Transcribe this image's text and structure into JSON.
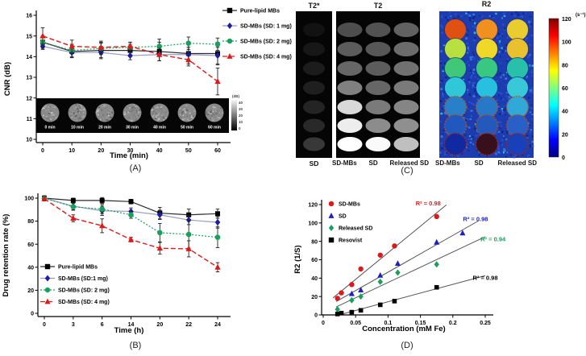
{
  "figure": {
    "captions": {
      "a": "(A)",
      "b": "(B)",
      "c": "(C)",
      "d": "(D)"
    }
  },
  "chart_data": [
    {
      "id": "cnr_vs_time",
      "type": "line",
      "xlabel": "Time (min)",
      "ylabel": "CNR (dB)",
      "x": [
        0,
        10,
        20,
        30,
        40,
        50,
        60
      ],
      "xtick_labels": [
        "0",
        "10",
        "20",
        "30",
        "40",
        "50",
        "60"
      ],
      "ylim": [
        10,
        16
      ],
      "yticks": [
        10,
        11,
        12,
        13,
        14,
        15,
        16
      ],
      "legend_position": "outside-right",
      "series": [
        {
          "name": "Pure-lipid MBs",
          "marker": "square",
          "color": "#000000",
          "line_color": "#2a2a2a",
          "dash": "solid",
          "values": [
            14.7,
            14.25,
            14.3,
            14.3,
            14.25,
            14.15,
            14.15
          ],
          "errors": [
            0.25,
            0.3,
            0.35,
            0.3,
            0.45,
            0.5,
            0.55
          ]
        },
        {
          "name": "SD-MBs (SD: 1 mg)",
          "marker": "diamond",
          "color": "#1c1ca8",
          "line_color": "#9a9ac8",
          "dash": "solid",
          "values": [
            14.5,
            14.2,
            14.2,
            14.05,
            14.1,
            14.1,
            14.05
          ],
          "errors": [
            0.15,
            0.25,
            0.3,
            0.2,
            0.3,
            0.35,
            0.4
          ]
        },
        {
          "name": "SD-MBs (SD: 2 mg)",
          "marker": "circle",
          "color": "#18a05c",
          "line_color": "#18a05c",
          "dash": "dotted",
          "values": [
            14.7,
            14.3,
            14.4,
            14.45,
            14.5,
            14.65,
            14.6
          ],
          "errors": [
            0.3,
            0.3,
            0.3,
            0.25,
            0.35,
            0.3,
            0.3
          ]
        },
        {
          "name": "SD-MBs (SD: 4 mg)",
          "marker": "triangle",
          "color": "#e01818",
          "line_color": "#e01818",
          "dash": "dashed",
          "values": [
            15.0,
            14.5,
            14.45,
            14.5,
            14.1,
            13.85,
            12.8
          ],
          "errors": [
            0.4,
            0.3,
            0.3,
            0.2,
            0.3,
            0.3,
            0.65
          ]
        }
      ],
      "inset": {
        "labels": [
          "0 min",
          "10 min",
          "20 min",
          "30 min",
          "40 min",
          "50 min",
          "60 min"
        ],
        "colorbar_label": "(dB)",
        "colorbar_ticks": [
          "40",
          "30",
          "20",
          "10",
          "0"
        ]
      }
    },
    {
      "id": "drug_retention_vs_time",
      "type": "line",
      "xlabel": "Time (h)",
      "ylabel": "Drug retention rate (%)",
      "x_categories": [
        "0",
        "3",
        "6",
        "14",
        "20",
        "22",
        "24"
      ],
      "ylim": [
        0,
        100
      ],
      "yticks": [
        0,
        20,
        40,
        60,
        80,
        100
      ],
      "legend_position": "inside-bottom-left",
      "series": [
        {
          "name": "Pure-lipid MBs",
          "marker": "square",
          "color": "#000000",
          "line_color": "#2a2a2a",
          "dash": "solid",
          "values": [
            100,
            98,
            98,
            97,
            87,
            85.5,
            86.5
          ],
          "errors": [
            2,
            2,
            2.5,
            2,
            5,
            5,
            4
          ]
        },
        {
          "name": "SD-MBs (SD:1 mg)",
          "marker": "diamond",
          "color": "#1c1ca8",
          "line_color": "#9a9ac8",
          "dash": "solid",
          "values": [
            100,
            93,
            89,
            88.5,
            85.5,
            81,
            79
          ],
          "errors": [
            2,
            3,
            4,
            3,
            4,
            4,
            5
          ]
        },
        {
          "name": "SD-MBs (SD: 2 mg)",
          "marker": "circle",
          "color": "#18a05c",
          "line_color": "#18a05c",
          "dash": "dotted",
          "values": [
            100,
            92.5,
            90.5,
            85.5,
            70,
            68.5,
            66
          ],
          "errors": [
            2,
            3,
            4,
            3,
            8,
            12,
            9
          ]
        },
        {
          "name": "SD-MBs (SD: 4 mg)",
          "marker": "triangle",
          "color": "#e01818",
          "line_color": "#e01818",
          "dash": "dashed",
          "values": [
            99.5,
            82.5,
            76,
            64,
            56.5,
            56,
            40
          ],
          "errors": [
            2,
            3,
            6,
            2,
            5,
            7,
            4
          ]
        }
      ]
    },
    {
      "id": "r2_vs_concentration",
      "type": "scatter",
      "xlabel": "Concentration (mM Fe)",
      "ylabel": "R2 (1/S)",
      "xlim": [
        0,
        0.25
      ],
      "xticks": [
        0,
        0.05,
        0.1,
        0.15,
        0.2,
        0.25
      ],
      "xtick_labels": [
        "0",
        "0.05",
        "0.1",
        "0.15",
        "0.2",
        "0.25"
      ],
      "ylim": [
        0,
        120
      ],
      "yticks": [
        0,
        20,
        40,
        60,
        80,
        100,
        120
      ],
      "legend_position": "inside-top-left",
      "fit_line_color": "#555555",
      "series": [
        {
          "name": "SD-MBs",
          "marker": "circle",
          "color": "#e01818",
          "points": [
            [
              0.022,
              18
            ],
            [
              0.028,
              24
            ],
            [
              0.044,
              33
            ],
            [
              0.058,
              50
            ],
            [
              0.088,
              65
            ],
            [
              0.11,
              75
            ],
            [
              0.175,
              107
            ]
          ],
          "fit_range": [
            0.015,
            0.19
          ],
          "r2_label": "R² = 0.98",
          "r2_pos": [
            0.162,
            119
          ]
        },
        {
          "name": "SD",
          "marker": "triangle",
          "color": "#2020c0",
          "points": [
            [
              0.044,
              23
            ],
            [
              0.058,
              27
            ],
            [
              0.088,
              43
            ],
            [
              0.115,
              56
            ],
            [
              0.175,
              79
            ],
            [
              0.215,
              89
            ]
          ],
          "fit_range": [
            0.02,
            0.24
          ],
          "r2_label": "R² = 0.98",
          "r2_pos": [
            0.235,
            102
          ]
        },
        {
          "name": "Released SD",
          "marker": "diamond",
          "color": "#18a05c",
          "points": [
            [
              0.022,
              6
            ],
            [
              0.044,
              16
            ],
            [
              0.058,
              20
            ],
            [
              0.088,
              36
            ],
            [
              0.115,
              46
            ],
            [
              0.175,
              55
            ]
          ],
          "fit_range": [
            0.02,
            0.25
          ],
          "r2_label": "R² = 0.94",
          "r2_pos": [
            0.262,
            80
          ]
        },
        {
          "name": "Resovist",
          "marker": "square",
          "color": "#000000",
          "points": [
            [
              0.022,
              1
            ],
            [
              0.028,
              2
            ],
            [
              0.044,
              3
            ],
            [
              0.058,
              5
            ],
            [
              0.088,
              11
            ],
            [
              0.11,
              15
            ],
            [
              0.175,
              30
            ]
          ],
          "fit_range": [
            0.02,
            0.25
          ],
          "r2_label": "R² = 0.98",
          "r2_pos": [
            0.25,
            38
          ]
        }
      ]
    }
  ],
  "panel_c": {
    "t2star": {
      "title": "T2*",
      "bottom_label": "SD",
      "brightness": [
        0.07,
        0.09,
        0.11,
        0.12,
        0.14,
        0.16,
        0.22
      ]
    },
    "t2": {
      "title": "T2",
      "bottom_labels": [
        "SD-MBs",
        "SD",
        "Released SD"
      ],
      "brightness": [
        [
          0.3,
          0.32,
          0.38
        ],
        [
          0.36,
          0.34,
          0.42
        ],
        [
          0.4,
          0.36,
          0.44
        ],
        [
          0.5,
          0.4,
          0.48
        ],
        [
          0.85,
          0.48,
          0.52
        ],
        [
          0.93,
          0.55,
          0.56
        ],
        [
          1.0,
          0.98,
          0.75
        ]
      ]
    },
    "r2map": {
      "title": "R2",
      "bottom_labels": [
        "SD-MBs",
        "SD",
        "Released SD"
      ],
      "cell_colors": [
        [
          "#e05010",
          "#f09020",
          "#e8cc30"
        ],
        [
          "#b8e040",
          "#f0d828",
          "#e8c030"
        ],
        [
          "#40c878",
          "#38c882",
          "#28c0a8"
        ],
        [
          "#30c8d8",
          "#28c0e0",
          "#38c8d8"
        ],
        [
          "#2880c8",
          "#2878c8",
          "#30a8d8"
        ],
        [
          "#2058c0",
          "#2458bc",
          "#2860c8"
        ],
        [
          "#1028a0",
          "#38101c",
          "#1840b8"
        ]
      ],
      "rim_colors": [
        null,
        null,
        null,
        null,
        "#b85818",
        "#b05018",
        "#a02810"
      ]
    },
    "colorbar": {
      "ticks": [
        "120",
        "100",
        "80",
        "60",
        "40",
        "20",
        "0"
      ],
      "unit": "(s⁻¹)"
    }
  }
}
